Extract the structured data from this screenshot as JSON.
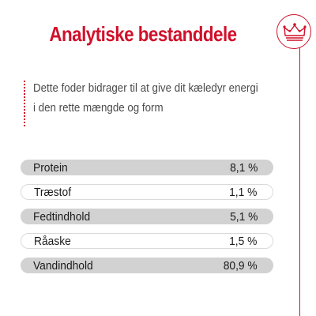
{
  "title": "Analytiske bestanddele",
  "description": {
    "line1": "Dette foder bidrager til at give dit kæledyr energi",
    "line2": "i den rette mængde og form"
  },
  "brand_icon": "crown-icon",
  "colors": {
    "accent": "#d0112b",
    "row_shaded": "#d2d2d2",
    "text": "#1a1a1a"
  },
  "analysis": [
    {
      "label": "Protein",
      "value": "8,1 %"
    },
    {
      "label": "Træstof",
      "value": "1,1 %"
    },
    {
      "label": "Fedtindhold",
      "value": "5,1 %"
    },
    {
      "label": "Råaske",
      "value": "1,5 %"
    },
    {
      "label": "Vandindhold",
      "value": "80,9 %"
    }
  ]
}
